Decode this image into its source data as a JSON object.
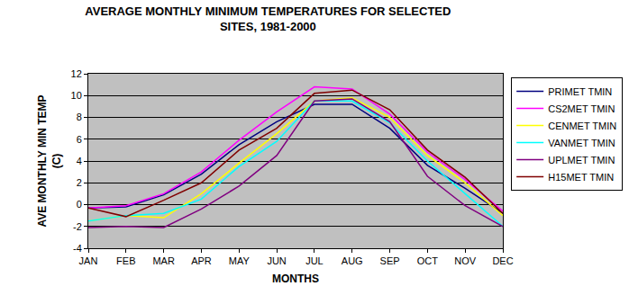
{
  "chart_data": {
    "type": "line",
    "title": "AVERAGE MONTHLY MINIMUM TEMPERATURES FOR SELECTED\nSITES, 1981-2000",
    "x_label": "MONTHS",
    "y_label": "AVE MONTHLY MIN TEMP\n(C)",
    "categories": [
      "JAN",
      "FEB",
      "MAR",
      "APR",
      "MAY",
      "JUN",
      "JUL",
      "AUG",
      "SEP",
      "OCT",
      "NOV",
      "DEC"
    ],
    "series": [
      {
        "name": "PRIMET TMIN",
        "color": "#000080",
        "values": [
          -0.3,
          -0.2,
          0.9,
          2.8,
          5.5,
          7.6,
          9.2,
          9.2,
          7.0,
          3.6,
          1.5,
          -0.8
        ]
      },
      {
        "name": "CS2MET TMIN",
        "color": "#ff00ff",
        "values": [
          -0.3,
          -0.1,
          1.0,
          3.0,
          5.9,
          8.5,
          10.8,
          10.6,
          8.3,
          4.8,
          2.3,
          -0.6
        ]
      },
      {
        "name": "CENMET TMIN",
        "color": "#ffff00",
        "values": [
          -1.5,
          -1.0,
          -1.2,
          1.0,
          3.8,
          6.5,
          9.5,
          9.8,
          8.0,
          4.5,
          2.0,
          -1.0
        ]
      },
      {
        "name": "VANMET TMIN",
        "color": "#00ffff",
        "values": [
          -1.5,
          -1.0,
          -0.8,
          0.5,
          3.5,
          5.8,
          9.5,
          9.5,
          7.5,
          4.0,
          1.0,
          -2.0
        ]
      },
      {
        "name": "UPLMET TMIN",
        "color": "#800080",
        "values": [
          -2.1,
          -2.0,
          -2.1,
          -0.4,
          1.7,
          4.5,
          9.5,
          9.7,
          7.6,
          2.6,
          -0.1,
          -2.0
        ]
      },
      {
        "name": "H15MET TMIN",
        "color": "#800000",
        "values": [
          -0.3,
          -1.1,
          0.4,
          2.0,
          5.0,
          7.0,
          10.2,
          10.5,
          8.7,
          5.0,
          2.5,
          -0.8
        ]
      }
    ],
    "ylim": [
      -4,
      12
    ],
    "yticks": [
      -4,
      -2,
      0,
      2,
      4,
      6,
      8,
      10,
      12
    ],
    "grid": true,
    "legend": "right"
  }
}
